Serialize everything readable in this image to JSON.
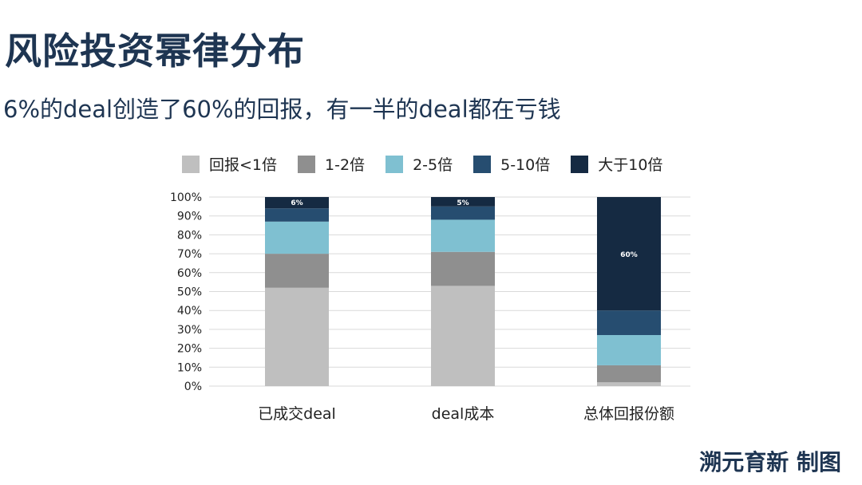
{
  "title": "风险投资幂律分布",
  "subtitle": "6%的deal创造了60%的回报，有一半的deal都在亏钱",
  "credit": "溯元育新 制图",
  "chart_data": {
    "type": "bar",
    "stacked": true,
    "categories": [
      "已成交deal",
      "deal成本",
      "总体回报份额"
    ],
    "series": [
      {
        "name": "回报<1倍",
        "color": "#bfbfbf",
        "values": [
          52,
          53,
          2
        ]
      },
      {
        "name": "1-2倍",
        "color": "#8f8f8f",
        "values": [
          18,
          18,
          9
        ]
      },
      {
        "name": "2-5倍",
        "color": "#7fc0d1",
        "values": [
          17,
          17,
          16
        ]
      },
      {
        "name": "5-10倍",
        "color": "#264d70",
        "values": [
          7,
          7,
          13
        ]
      },
      {
        "name": "大于10倍",
        "color": "#152a42",
        "values": [
          6,
          5,
          60
        ]
      }
    ],
    "data_labels": [
      "6%",
      "5%",
      "60%"
    ],
    "ylim": [
      0,
      100
    ],
    "yticks": [
      "0%",
      "10%",
      "20%",
      "30%",
      "40%",
      "50%",
      "60%",
      "70%",
      "80%",
      "90%",
      "100%"
    ],
    "grid": true,
    "legend": "top"
  }
}
